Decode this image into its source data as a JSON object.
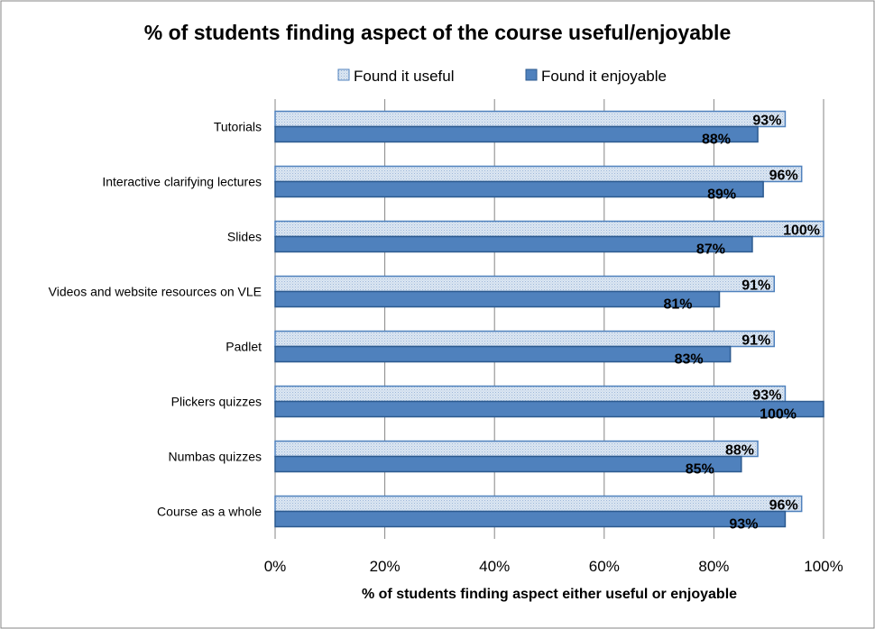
{
  "chart_data": {
    "type": "bar",
    "orientation": "horizontal",
    "title": "% of students finding aspect of the course useful/enjoyable",
    "xlabel": "% of students finding aspect either useful or enjoyable",
    "ylabel": "",
    "xlim": [
      0,
      100
    ],
    "xticks": [
      "0%",
      "20%",
      "40%",
      "60%",
      "80%",
      "100%"
    ],
    "legend_position": "top",
    "grid": "vertical",
    "categories": [
      "Tutorials",
      "Interactive clarifying lectures",
      "Slides",
      "Videos and website resources on VLE",
      "Padlet",
      "Plickers quizzes",
      "Numbas quizzes",
      "Course as a whole"
    ],
    "series": [
      {
        "name": "Found it useful",
        "color": "#dbe5f1",
        "border": "#4f81bd",
        "pattern": "dotted",
        "values": [
          93,
          96,
          100,
          91,
          91,
          93,
          88,
          96
        ],
        "labels": [
          "93%",
          "96%",
          "100%",
          "91%",
          "91%",
          "93%",
          "88%",
          "96%"
        ]
      },
      {
        "name": "Found it enjoyable",
        "color": "#4f81bd",
        "border": "#2c5a8f",
        "pattern": "solid",
        "values": [
          88,
          89,
          87,
          81,
          83,
          100,
          85,
          93
        ],
        "labels": [
          "88%",
          "89%",
          "87%",
          "81%",
          "83%",
          "100%",
          "85%",
          "93%"
        ]
      }
    ]
  }
}
